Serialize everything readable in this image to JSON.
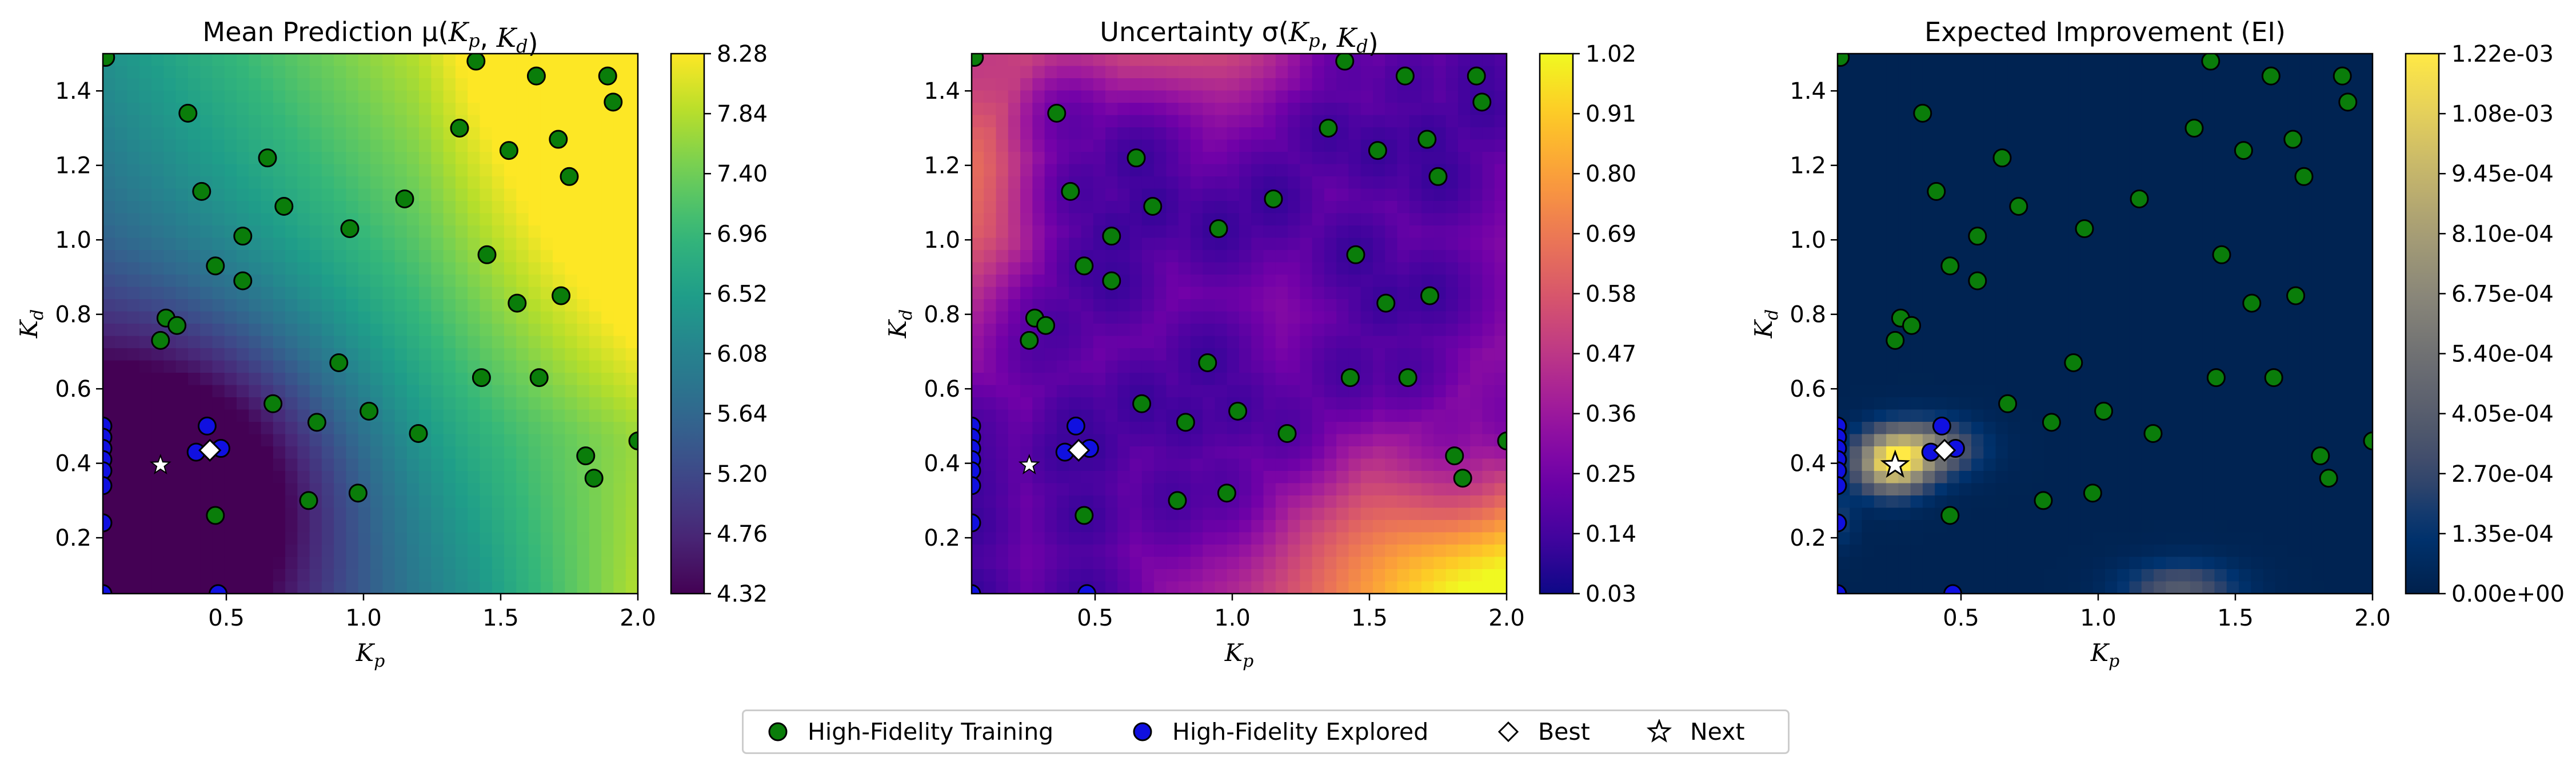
{
  "figure": {
    "colors": {
      "training_marker": "#0a7d0a",
      "explored_marker": "#1010e0",
      "marker_edge": "#000000"
    }
  },
  "chart_data": [
    {
      "type": "heatmap",
      "title": "Mean Prediction μ(K_p, K_d)",
      "xlabel": "K_p",
      "ylabel": "K_d",
      "xlim": [
        0.05,
        2.0
      ],
      "ylim": [
        0.05,
        1.5
      ],
      "x_ticks": [
        "0.5",
        "1.0",
        "1.5",
        "2.0"
      ],
      "y_ticks": [
        "0.2",
        "0.4",
        "0.6",
        "0.8",
        "1.0",
        "1.2",
        "1.4"
      ],
      "colormap": "viridis",
      "colorbar_range": [
        4.32,
        8.28
      ],
      "colorbar_ticks": [
        "4.32",
        "4.76",
        "5.20",
        "5.64",
        "6.08",
        "6.52",
        "6.96",
        "7.40",
        "7.84",
        "8.28"
      ],
      "surface_shape": "minimum near (0.3, 0.35), rising toward top-right and bottom-right"
    },
    {
      "type": "heatmap",
      "title": "Uncertainty σ(K_p, K_d)",
      "xlabel": "K_p",
      "ylabel": "K_d",
      "xlim": [
        0.05,
        2.0
      ],
      "ylim": [
        0.05,
        1.5
      ],
      "x_ticks": [
        "0.5",
        "1.0",
        "1.5",
        "2.0"
      ],
      "y_ticks": [
        "0.2",
        "0.4",
        "0.6",
        "0.8",
        "1.0",
        "1.2",
        "1.4"
      ],
      "colormap": "plasma",
      "colorbar_range": [
        0.03,
        1.02
      ],
      "colorbar_ticks": [
        "0.03",
        "0.14",
        "0.25",
        "0.36",
        "0.47",
        "0.58",
        "0.69",
        "0.80",
        "0.91",
        "1.02"
      ],
      "surface_shape": "low near sampled points; high at bottom-right corner, upper-left edge and top edge"
    },
    {
      "type": "heatmap",
      "title": "Expected Improvement (EI)",
      "xlabel": "K_p",
      "ylabel": "K_d",
      "xlim": [
        0.05,
        2.0
      ],
      "ylim": [
        0.05,
        1.5
      ],
      "x_ticks": [
        "0.5",
        "1.0",
        "1.5",
        "2.0"
      ],
      "y_ticks": [
        "0.2",
        "0.4",
        "0.6",
        "0.8",
        "1.0",
        "1.2",
        "1.4"
      ],
      "colormap": "cividis",
      "colorbar_range": [
        0.0,
        0.00122
      ],
      "colorbar_ticks": [
        "0.00e+00",
        "1.35e-04",
        "2.70e-04",
        "4.05e-04",
        "5.40e-04",
        "6.75e-04",
        "8.10e-04",
        "9.45e-04",
        "1.08e-03",
        "1.22e-03"
      ],
      "surface_shape": "peak near (0.25, 0.40) extending toward (0.45, 0.45); weak bump near (1.3, 0.07)"
    }
  ],
  "points": {
    "training": [
      [
        0.06,
        1.49
      ],
      [
        0.36,
        1.34
      ],
      [
        0.41,
        1.13
      ],
      [
        0.65,
        1.22
      ],
      [
        0.71,
        1.09
      ],
      [
        0.56,
        1.01
      ],
      [
        0.95,
        1.03
      ],
      [
        1.15,
        1.11
      ],
      [
        1.35,
        1.3
      ],
      [
        1.41,
        1.48
      ],
      [
        1.53,
        1.24
      ],
      [
        1.63,
        1.44
      ],
      [
        1.71,
        1.27
      ],
      [
        1.75,
        1.17
      ],
      [
        1.89,
        1.44
      ],
      [
        1.91,
        1.37
      ],
      [
        0.46,
        0.93
      ],
      [
        0.56,
        0.89
      ],
      [
        1.45,
        0.96
      ],
      [
        1.56,
        0.83
      ],
      [
        1.72,
        0.85
      ],
      [
        0.28,
        0.79
      ],
      [
        0.32,
        0.77
      ],
      [
        0.26,
        0.73
      ],
      [
        0.91,
        0.67
      ],
      [
        0.67,
        0.56
      ],
      [
        1.43,
        0.63
      ],
      [
        1.64,
        0.63
      ],
      [
        1.02,
        0.54
      ],
      [
        0.83,
        0.51
      ],
      [
        1.2,
        0.48
      ],
      [
        1.81,
        0.42
      ],
      [
        1.84,
        0.36
      ],
      [
        2.0,
        0.46
      ],
      [
        0.8,
        0.3
      ],
      [
        0.98,
        0.32
      ],
      [
        0.46,
        0.26
      ]
    ],
    "explored": [
      [
        0.05,
        0.5
      ],
      [
        0.05,
        0.47
      ],
      [
        0.05,
        0.44
      ],
      [
        0.05,
        0.41
      ],
      [
        0.05,
        0.38
      ],
      [
        0.05,
        0.34
      ],
      [
        0.05,
        0.24
      ],
      [
        0.05,
        0.05
      ],
      [
        0.39,
        0.43
      ],
      [
        0.43,
        0.5
      ],
      [
        0.48,
        0.44
      ],
      [
        0.47,
        0.05
      ]
    ],
    "best": [
      0.44,
      0.435
    ],
    "next": [
      0.26,
      0.395
    ]
  },
  "legend": {
    "training": "High-Fidelity Training",
    "explored": "High-Fidelity Explored",
    "best": "Best",
    "next": "Next"
  }
}
